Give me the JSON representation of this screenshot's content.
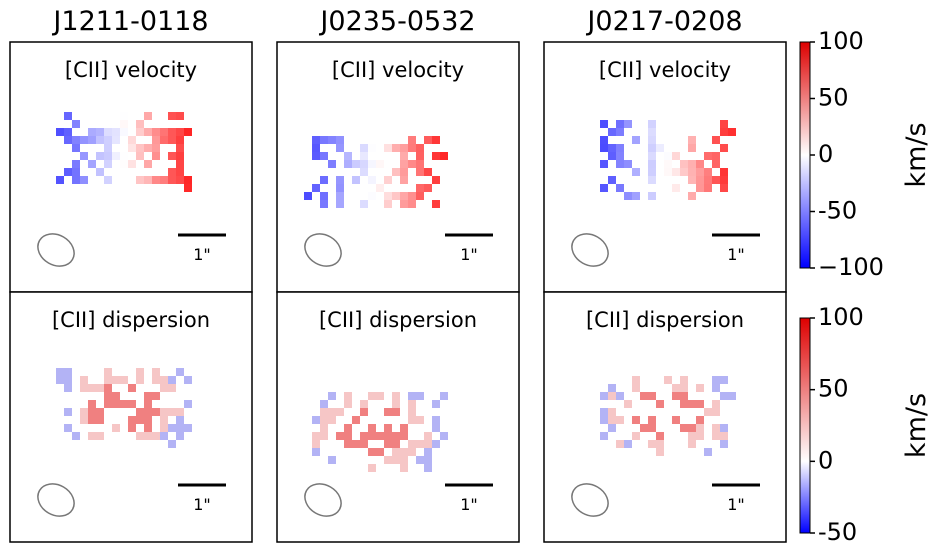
{
  "columns": [
    "J1211-0118",
    "J0235-0532",
    "J0217-0208"
  ],
  "rows": [
    {
      "label": "[CII] velocity",
      "colorbar": {
        "label": "km/s",
        "lim": [
          -100,
          100
        ],
        "ticks": [
          100,
          50,
          0,
          -50,
          {
            "value": -100,
            "label": "−100"
          }
        ]
      }
    },
    {
      "label": "[CII] dispersion",
      "colorbar": {
        "label": "km/s",
        "lim": [
          -50,
          100
        ],
        "ticks": [
          100,
          50,
          0,
          -50
        ]
      }
    }
  ],
  "scale_bar": "1\""
}
